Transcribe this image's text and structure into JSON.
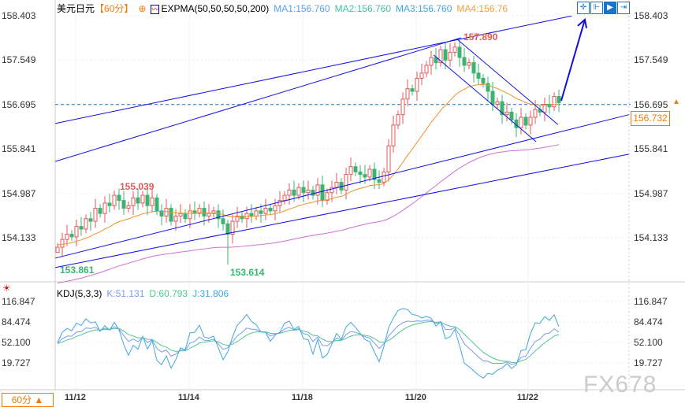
{
  "header": {
    "symbol": "美元日元",
    "period": "【60分】",
    "indicator": "EXPMA(50,50,50,50,200)",
    "ma1": "MA1:156.760",
    "ma2": "MA2:156.760",
    "ma3": "MA3:156.760",
    "ma4": "MA4:156.76"
  },
  "kdj": {
    "label": "KDJ(5,3,3)",
    "k": "K:51.131",
    "d": "D:60.793",
    "j": "J:31.806"
  },
  "period_button": "60分 ▲",
  "watermark": "FX678",
  "toolbar": [
    "crosshair-icon",
    "range-icon",
    "play-icon",
    "exit-icon"
  ],
  "colors": {
    "up": "#e05a5a",
    "down": "#3cb371",
    "ema_short": "#f0922a",
    "ema_long": "#d070d0",
    "trendline": "#1010e0",
    "current": "#1a73c8",
    "price_box": "#f07a10"
  },
  "chart_data": {
    "type": "candlestick",
    "price_axis": {
      "ticks": [
        "158.403",
        "157.549",
        "156.695",
        "155.841",
        "154.987",
        "154.133"
      ],
      "range": [
        153.35,
        158.403
      ]
    },
    "kdj_axis": {
      "ticks": [
        "116.847",
        "84.474",
        "52.100",
        "19.727"
      ]
    },
    "x_ticks": [
      "11/12",
      "11/14",
      "11/18",
      "11/20",
      "11/22"
    ],
    "close": [
      153.95,
      154.1,
      154.2,
      154.15,
      154.35,
      154.3,
      154.5,
      154.45,
      154.7,
      154.6,
      154.8,
      154.75,
      154.95,
      154.85,
      154.7,
      154.75,
      154.9,
      154.8,
      154.95,
      154.75,
      154.9,
      154.65,
      154.55,
      154.7,
      154.45,
      154.55,
      154.6,
      154.5,
      154.65,
      154.6,
      154.7,
      154.55,
      154.6,
      154.65,
      154.5,
      154.4,
      154.2,
      154.45,
      154.55,
      154.5,
      154.6,
      154.55,
      154.65,
      154.6,
      154.7,
      154.65,
      154.75,
      154.85,
      154.95,
      155.05,
      154.95,
      155.1,
      155.0,
      155.05,
      154.95,
      155.15,
      154.85,
      155.0,
      155.1,
      155.2,
      155.05,
      155.35,
      155.5,
      155.4,
      155.35,
      155.3,
      155.45,
      155.25,
      155.2,
      155.4,
      155.9,
      156.3,
      156.5,
      156.8,
      157.0,
      156.95,
      157.2,
      157.3,
      157.45,
      157.6,
      157.5,
      157.75,
      157.55,
      157.7,
      157.8,
      157.6,
      157.45,
      157.5,
      157.3,
      157.2,
      157.1,
      156.95,
      156.7,
      156.75,
      156.5,
      156.55,
      156.4,
      156.25,
      156.45,
      156.3,
      156.45,
      156.6,
      156.55,
      156.7,
      156.65,
      156.85,
      156.73
    ],
    "annotations": {
      "high": "157.890",
      "high_left": "155.039",
      "low": "153.614",
      "low_start": "153.861",
      "current_price": "156.732",
      "current_line": 156.695
    },
    "trendlines": [
      [
        [
          -0.5,
          156.33
        ],
        [
          108.7,
          158.4
        ]
      ],
      [
        [
          -0.5,
          155.6
        ],
        [
          85.3,
          157.98
        ]
      ],
      [
        [
          -0.5,
          153.74
        ],
        [
          120.8,
          156.5
        ]
      ],
      [
        [
          -0.5,
          153.56
        ],
        [
          120.8,
          155.74
        ]
      ],
      [
        [
          79.5,
          157.65
        ],
        [
          101.2,
          155.98
        ]
      ],
      [
        [
          84.5,
          157.95
        ],
        [
          105.8,
          156.31
        ]
      ]
    ],
    "arrow": [
      [
        106.5,
        156.77
      ],
      [
        111.5,
        158.33
      ]
    ]
  }
}
